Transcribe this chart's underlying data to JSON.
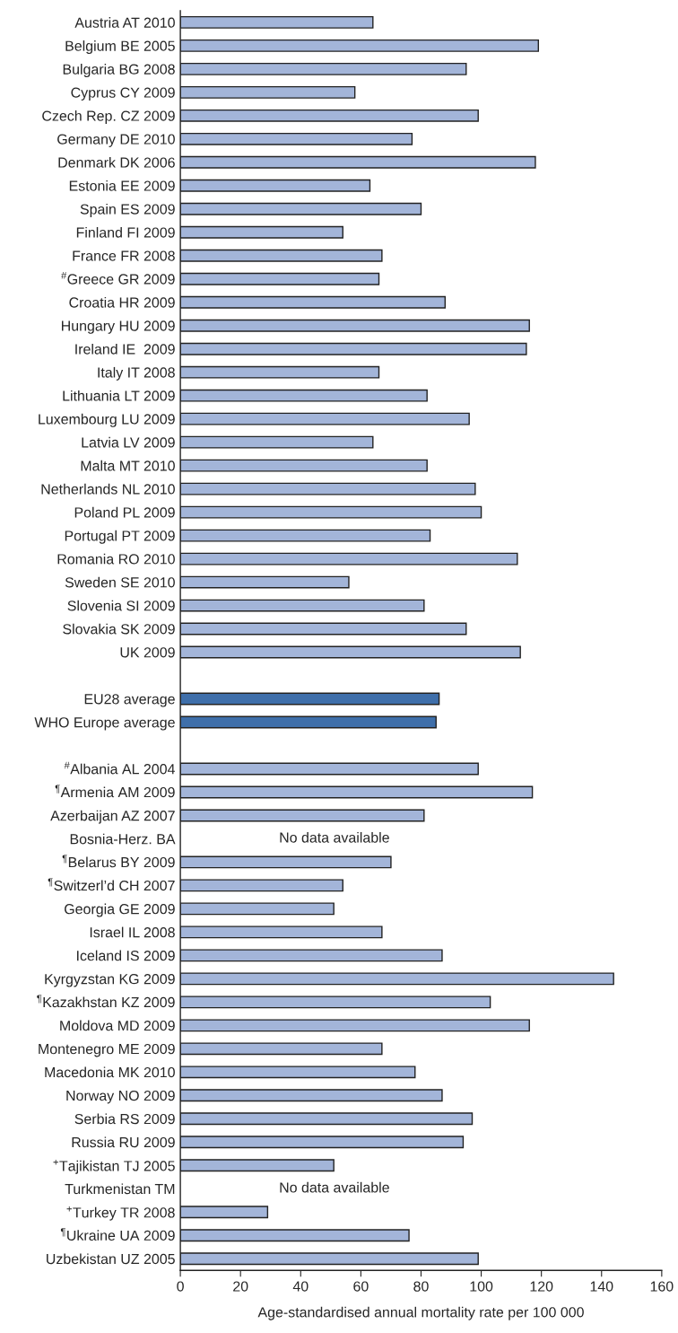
{
  "chart_data": {
    "type": "bar",
    "orientation": "horizontal",
    "categories": [
      "Austria AT 2010",
      "Belgium BE 2005",
      "Bulgaria BG 2008",
      "Cyprus CY 2009",
      "Czech Rep. CZ 2009",
      "Germany DE 2010",
      "Denmark DK 2006",
      "Estonia EE 2009",
      "Spain ES 2009",
      "Finland FI 2009",
      "France FR 2008",
      "$^{#}$Greece GR 2009",
      "Croatia HR 2009",
      "Hungary HU 2009",
      "Ireland IE  2009",
      "Italy IT 2008",
      "Lithuania LT 2009",
      "Luxembourg LU 2009",
      "Latvia LV 2009",
      "Malta MT 2010",
      "Netherlands NL 2010",
      "Poland PL 2009",
      "Portugal PT 2009",
      "Romania RO 2010",
      "Sweden SE 2010",
      "Slovenia SI 2009",
      "Slovakia SK 2009",
      "UK 2009",
      null,
      "EU28 average",
      "WHO Europe average",
      null,
      "$^{#}$Albania AL 2004",
      "$^{¶}$Armenia AM 2009",
      "Azerbaijan AZ 2007",
      "Bosnia-Herz. BA",
      "$^{¶}$Belarus BY 2009",
      "$^{¶}$Switzerl’d CH 2007",
      "Georgia GE 2009",
      "Israel IL 2008",
      "Iceland IS 2009",
      "Kyrgyzstan KG 2009",
      "$^{¶}$Kazakhstan KZ 2009",
      "Moldova MD 2009",
      "Montenegro ME 2009",
      "Macedonia MK 2010",
      "Norway NO 2009",
      "Serbia RS 2009",
      "Russia RU 2009",
      "$^{+}$Tajikistan TJ 2005",
      "Turkmenistan TM",
      "$^{+}$Turkey TR 2008",
      "$^{¶}$Ukraine UA 2009",
      "Uzbekistan UZ 2005"
    ],
    "values": [
      64,
      119,
      95,
      58,
      99,
      77,
      118,
      63,
      80,
      54,
      67,
      66,
      88,
      116,
      115,
      66,
      82,
      96,
      64,
      82,
      98,
      100,
      83,
      112,
      56,
      81,
      95,
      113,
      null,
      86,
      85,
      null,
      99,
      117,
      81,
      null,
      70,
      54,
      51,
      67,
      87,
      144,
      103,
      116,
      67,
      78,
      87,
      97,
      94,
      51,
      null,
      29,
      76,
      99
    ],
    "colors": [
      "#a3b5d9",
      "#a3b5d9",
      "#a3b5d9",
      "#a3b5d9",
      "#a3b5d9",
      "#a3b5d9",
      "#a3b5d9",
      "#a3b5d9",
      "#a3b5d9",
      "#a3b5d9",
      "#a3b5d9",
      "#a3b5d9",
      "#a3b5d9",
      "#a3b5d9",
      "#a3b5d9",
      "#a3b5d9",
      "#a3b5d9",
      "#a3b5d9",
      "#a3b5d9",
      "#a3b5d9",
      "#a3b5d9",
      "#a3b5d9",
      "#a3b5d9",
      "#a3b5d9",
      "#a3b5d9",
      "#a3b5d9",
      "#a3b5d9",
      "#a3b5d9",
      "#a3b5d9",
      "#3f6faa",
      "#3f6faa",
      "#a3b5d9",
      "#a3b5d9",
      "#a3b5d9",
      "#a3b5d9",
      "#a3b5d9",
      "#a3b5d9",
      "#a3b5d9",
      "#a3b5d9",
      "#a3b5d9",
      "#a3b5d9",
      "#a3b5d9",
      "#a3b5d9",
      "#a3b5d9",
      "#a3b5d9",
      "#a3b5d9",
      "#a3b5d9",
      "#a3b5d9",
      "#a3b5d9",
      "#a3b5d9",
      "#a3b5d9",
      "#a3b5d9",
      "#a3b5d9",
      "#a3b5d9"
    ],
    "xlim": [
      0,
      160
    ],
    "xticks": [
      0,
      20,
      40,
      60,
      80,
      100,
      120,
      140,
      160
    ],
    "xlabel": "Age-standardised annual mortality rate per 100 000",
    "annotations": [
      "No data available",
      "No data available"
    ],
    "grid": false,
    "legend": false
  }
}
